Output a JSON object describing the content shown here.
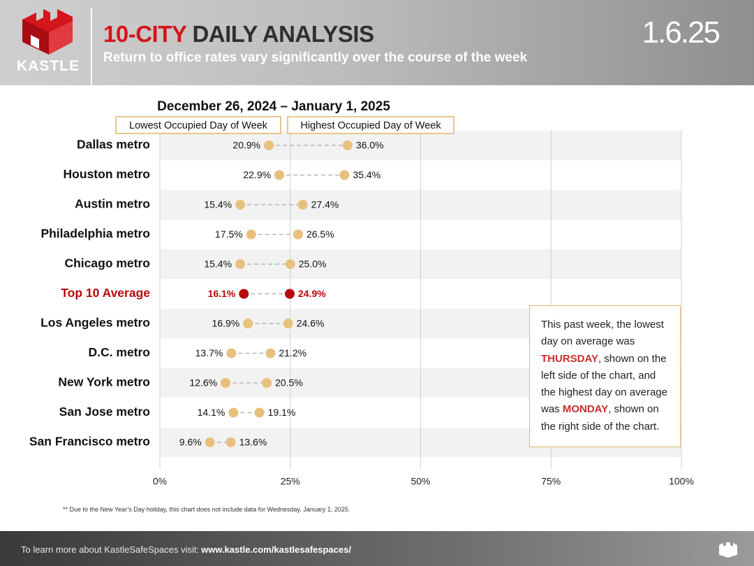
{
  "header": {
    "logo": "KASTLE",
    "title_red": "10-CITY",
    "title_dark": "DAILY ANALYSIS",
    "subtitle": "Return to office rates vary significantly over the course of the week",
    "date": "1.6.25"
  },
  "chart_data": {
    "type": "dumbbell",
    "title": "December 26, 2024 – January 1, 2025",
    "categories": [
      "Dallas metro",
      "Houston metro",
      "Austin metro",
      "Philadelphia metro",
      "Chicago metro",
      "Top 10 Average",
      "Los Angeles metro",
      "D.C. metro",
      "New York metro",
      "San Jose metro",
      "San Francisco metro"
    ],
    "series": [
      {
        "name": "Lowest Occupied Day of Week",
        "color": "#e8c07d",
        "values": [
          20.9,
          22.9,
          15.4,
          17.5,
          15.4,
          16.1,
          16.9,
          13.7,
          12.6,
          14.1,
          9.6
        ],
        "value_labels": [
          "20.9%",
          "22.9%",
          "15.4%",
          "17.5%",
          "15.4%",
          "16.1%",
          "16.9%",
          "13.7%",
          "12.6%",
          "14.1%",
          "9.6%"
        ]
      },
      {
        "name": "Highest Occupied Day of Week",
        "color": "#e8c07d",
        "values": [
          36.0,
          35.4,
          27.4,
          26.5,
          25.0,
          24.9,
          24.6,
          21.2,
          20.5,
          19.1,
          13.6
        ],
        "value_labels": [
          "36.0%",
          "35.4%",
          "27.4%",
          "26.5%",
          "25.0%",
          "24.9%",
          "24.6%",
          "21.2%",
          "20.5%",
          "19.1%",
          "13.6%"
        ]
      }
    ],
    "highlight_index": 5,
    "highlight_color": "#b8080d",
    "xlim": [
      0,
      100
    ],
    "xticks": [
      {
        "value": 0,
        "label": "0%"
      },
      {
        "value": 25,
        "label": "25%"
      },
      {
        "value": 50,
        "label": "50%"
      },
      {
        "value": 75,
        "label": "75%"
      },
      {
        "value": 100,
        "label": "100%"
      }
    ],
    "grid": true
  },
  "callout": {
    "segments": [
      "This past week, the lowest day on average was",
      "THURSDAY",
      ", shown on the left side of the chart, and the highest day on average was",
      "MONDAY",
      ", shown on the right side of the chart."
    ]
  },
  "footnote": "** Due to the New Year’s Day holiday, this chart does not include data for Wednesday, January 1, 2025.",
  "footer": {
    "text": "To learn more about KastleSafeSpaces visit:",
    "link": "www.kastle.com/kastlesafespaces/"
  }
}
